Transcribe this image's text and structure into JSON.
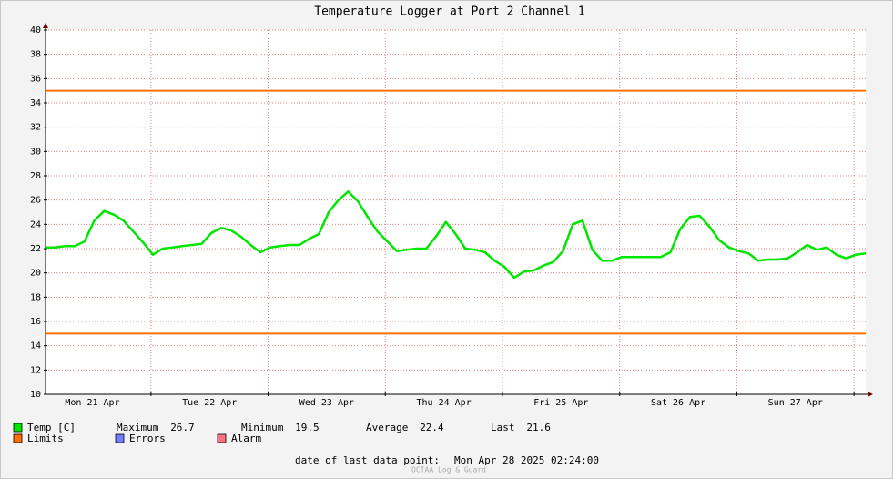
{
  "chart_data": {
    "type": "line",
    "title": "Temperature Logger at Port 2 Channel 1",
    "xlim": [
      0,
      168
    ],
    "xticks": [
      {
        "value": 9.6,
        "label": "Mon 21 Apr"
      },
      {
        "value": 33.6,
        "label": "Tue 22 Apr"
      },
      {
        "value": 57.6,
        "label": "Wed 23 Apr"
      },
      {
        "value": 81.6,
        "label": "Thu 24 Apr"
      },
      {
        "value": 105.6,
        "label": "Fri 25 Apr"
      },
      {
        "value": 129.6,
        "label": "Sat 26 Apr"
      },
      {
        "value": 153.6,
        "label": "Sun 27 Apr"
      }
    ],
    "x_major_grid": [
      21.6,
      45.6,
      69.6,
      93.6,
      117.6,
      141.6,
      165.6
    ],
    "ylim": [
      10,
      40
    ],
    "yticks": [
      10,
      12,
      14,
      16,
      18,
      20,
      22,
      24,
      26,
      28,
      30,
      32,
      34,
      36,
      38,
      40
    ],
    "grid": true,
    "series": [
      {
        "name": "Temp [C]",
        "color": "#00e600",
        "x": [
          0,
          2,
          4,
          6,
          8,
          10,
          12,
          14,
          16,
          18,
          20,
          22,
          24,
          26,
          28,
          30,
          32,
          34,
          36,
          38,
          40,
          42,
          44,
          46,
          48,
          50,
          52,
          54,
          56,
          58,
          60,
          62,
          64,
          66,
          68,
          70,
          72,
          74,
          76,
          78,
          80,
          82,
          84,
          86,
          88,
          90,
          92,
          94,
          96,
          98,
          100,
          102,
          104,
          106,
          108,
          110,
          112,
          114,
          116,
          118,
          120,
          122,
          124,
          126,
          128,
          130,
          132,
          134,
          136,
          138,
          140,
          142,
          144,
          146,
          148,
          150,
          152,
          154,
          156,
          158,
          160,
          162,
          164,
          166,
          168
        ],
        "values": [
          22.1,
          22.1,
          22.2,
          22.2,
          22.6,
          24.3,
          25.1,
          24.8,
          24.3,
          23.4,
          22.5,
          21.5,
          22.0,
          22.1,
          22.2,
          22.3,
          22.4,
          23.3,
          23.7,
          23.5,
          23.0,
          22.3,
          21.7,
          22.1,
          22.2,
          22.3,
          22.3,
          22.8,
          23.2,
          25.0,
          26.0,
          26.7,
          25.9,
          24.6,
          23.4,
          22.6,
          21.8,
          21.9,
          22.0,
          22.0,
          23.0,
          24.2,
          23.2,
          22.0,
          21.9,
          21.7,
          21.0,
          20.5,
          19.6,
          20.1,
          20.2,
          20.6,
          20.9,
          21.8,
          24.0,
          24.3,
          21.9,
          21.0,
          21.0,
          21.3,
          21.3,
          21.3,
          21.3,
          21.3,
          21.7,
          23.6,
          24.6,
          24.7,
          23.8,
          22.7,
          22.1,
          21.8,
          21.6,
          21.0,
          21.1,
          21.1,
          21.2,
          21.7,
          22.3,
          21.9,
          22.1,
          21.5,
          21.2,
          21.5,
          21.6
        ]
      }
    ],
    "limits": {
      "name": "Limits",
      "color": "#ff7000",
      "values": [
        35,
        15
      ]
    },
    "legend_extra": [
      {
        "name": "Errors",
        "color": "#7080ff"
      },
      {
        "name": "Alarm",
        "color": "#ff7080"
      }
    ],
    "stats": [
      {
        "label": "Maximum",
        "value": 26.7
      },
      {
        "label": "Minimum",
        "value": 19.5
      },
      {
        "label": "Average",
        "value": 22.4
      },
      {
        "label": "Last",
        "value": 21.6
      }
    ],
    "footer": {
      "label": "date of last data point:",
      "value": "Mon Apr 28 2025 02:24:00"
    },
    "watermark": "OCTAA Log & Guard"
  }
}
